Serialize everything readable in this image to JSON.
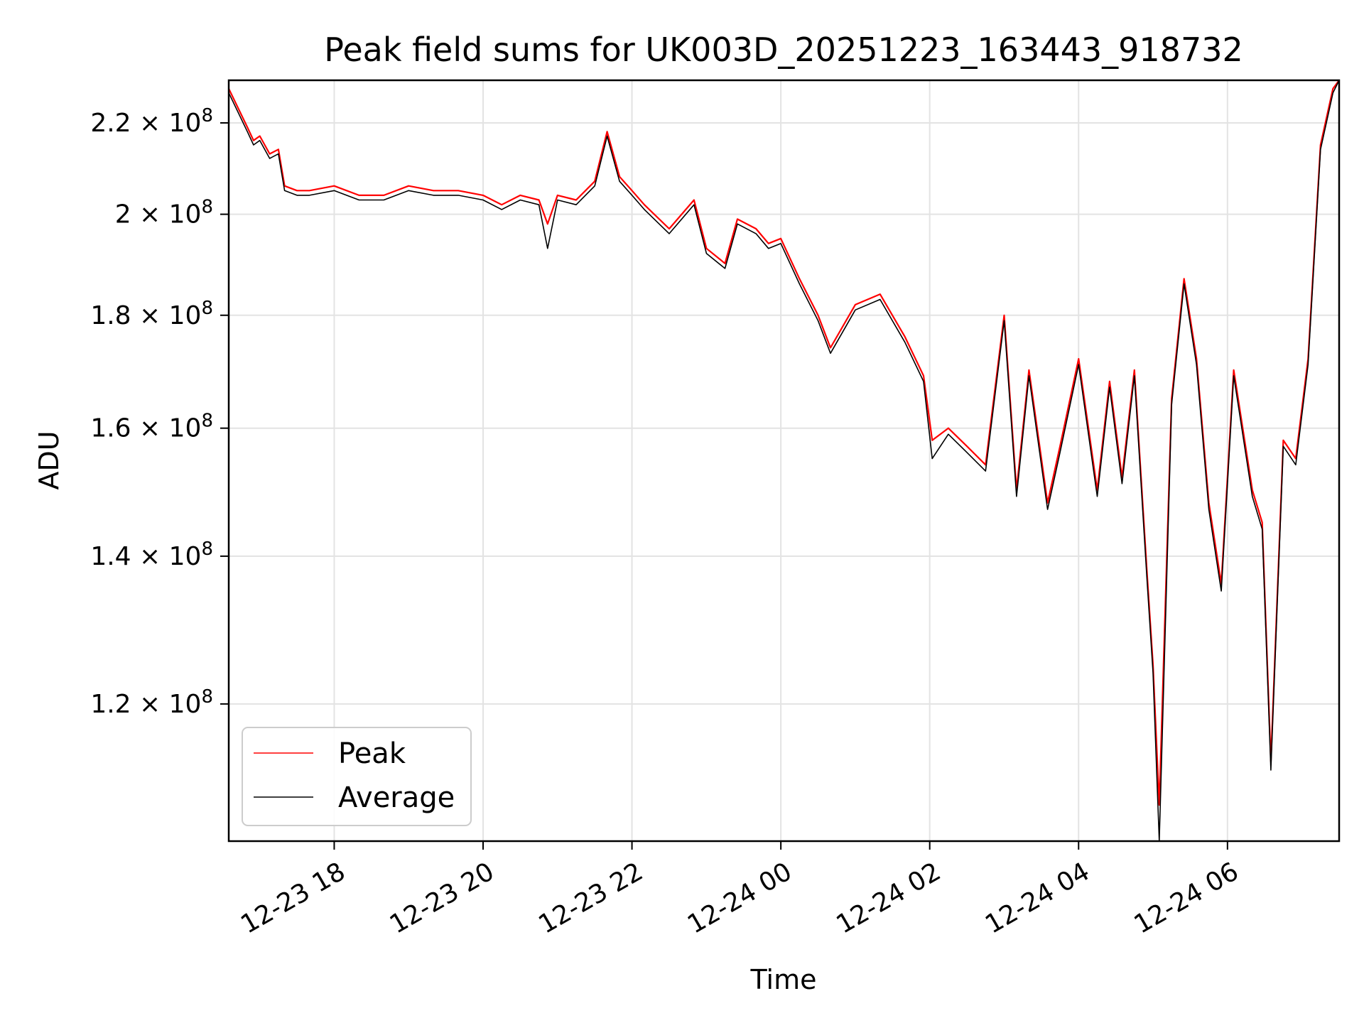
{
  "chart_data": {
    "type": "line",
    "title": "Peak field sums for UK003D_20251223_163443_918732",
    "xlabel": "Time",
    "ylabel": "ADU",
    "y_scale": "log",
    "ylim": [
      104000000,
      230000000
    ],
    "xlim": [
      "12-23 16:35",
      "12-24 07:30"
    ],
    "grid": true,
    "legend_position": "lower-left",
    "x_ticks": [
      "12-23 18",
      "12-23 20",
      "12-23 22",
      "12-24 00",
      "12-24 02",
      "12-24 04",
      "12-24 06"
    ],
    "y_ticks": [
      {
        "value": 120000000,
        "mantissa": "1.2",
        "exponent": "8"
      },
      {
        "value": 140000000,
        "mantissa": "1.4",
        "exponent": "8"
      },
      {
        "value": 160000000,
        "mantissa": "1.6",
        "exponent": "8"
      },
      {
        "value": 180000000,
        "mantissa": "1.8",
        "exponent": "8"
      },
      {
        "value": 200000000,
        "mantissa": "2",
        "exponent": "8"
      },
      {
        "value": 220000000,
        "mantissa": "2.2",
        "exponent": "8"
      }
    ],
    "series_colors": {
      "peak": "#ff0000",
      "average": "#000000"
    },
    "series": [
      {
        "name": "Peak",
        "color": "#ff0000",
        "x": [
          "12-23 16:35",
          "12-23 16:50",
          "12-23 16:55",
          "12-23 17:00",
          "12-23 17:08",
          "12-23 17:15",
          "12-23 17:20",
          "12-23 17:30",
          "12-23 17:40",
          "12-23 18:00",
          "12-23 18:20",
          "12-23 18:40",
          "12-23 19:00",
          "12-23 19:20",
          "12-23 19:40",
          "12-23 20:00",
          "12-23 20:15",
          "12-23 20:30",
          "12-23 20:45",
          "12-23 20:52",
          "12-23 21:00",
          "12-23 21:15",
          "12-23 21:30",
          "12-23 21:40",
          "12-23 21:50",
          "12-23 22:00",
          "12-23 22:10",
          "12-23 22:30",
          "12-23 22:50",
          "12-23 23:00",
          "12-23 23:15",
          "12-23 23:25",
          "12-23 23:40",
          "12-23 23:50",
          "12-24 00:00",
          "12-24 00:15",
          "12-24 00:30",
          "12-24 00:40",
          "12-24 01:00",
          "12-24 01:20",
          "12-24 01:40",
          "12-24 01:55",
          "12-24 02:02",
          "12-24 02:15",
          "12-24 02:30",
          "12-24 02:45",
          "12-24 03:00",
          "12-24 03:10",
          "12-24 03:20",
          "12-24 03:35",
          "12-24 03:45",
          "12-24 04:00",
          "12-24 04:15",
          "12-24 04:25",
          "12-24 04:35",
          "12-24 04:45",
          "12-24 04:55",
          "12-24 05:00",
          "12-24 05:05",
          "12-24 05:15",
          "12-24 05:25",
          "12-24 05:35",
          "12-24 05:45",
          "12-24 05:55",
          "12-24 06:05",
          "12-24 06:20",
          "12-24 06:28",
          "12-24 06:35",
          "12-24 06:45",
          "12-24 06:55",
          "12-24 07:05",
          "12-24 07:15",
          "12-24 07:25",
          "12-24 07:30"
        ],
        "values": [
          228000000,
          219000000,
          216000000,
          217000000,
          213000000,
          214000000,
          206000000,
          205000000,
          205000000,
          206000000,
          204000000,
          204000000,
          206000000,
          205000000,
          205000000,
          204000000,
          202000000,
          204000000,
          203000000,
          198000000,
          204000000,
          203000000,
          207000000,
          218000000,
          208000000,
          205000000,
          202000000,
          197000000,
          203000000,
          193000000,
          190000000,
          199000000,
          197000000,
          194000000,
          195000000,
          187000000,
          180000000,
          174000000,
          182000000,
          184000000,
          176000000,
          169000000,
          158000000,
          160000000,
          157000000,
          154000000,
          180000000,
          150000000,
          170000000,
          148000000,
          157000000,
          172000000,
          150000000,
          168000000,
          152000000,
          170000000,
          138000000,
          125000000,
          108000000,
          165000000,
          187000000,
          172000000,
          148000000,
          136000000,
          170000000,
          150000000,
          145000000,
          113000000,
          158000000,
          155000000,
          172000000,
          215000000,
          228000000,
          230000000
        ]
      },
      {
        "name": "Average",
        "color": "#000000",
        "x": [
          "12-23 16:35",
          "12-23 16:50",
          "12-23 16:55",
          "12-23 17:00",
          "12-23 17:08",
          "12-23 17:15",
          "12-23 17:20",
          "12-23 17:30",
          "12-23 17:40",
          "12-23 18:00",
          "12-23 18:20",
          "12-23 18:40",
          "12-23 19:00",
          "12-23 19:20",
          "12-23 19:40",
          "12-23 20:00",
          "12-23 20:15",
          "12-23 20:30",
          "12-23 20:45",
          "12-23 20:52",
          "12-23 21:00",
          "12-23 21:15",
          "12-23 21:30",
          "12-23 21:40",
          "12-23 21:50",
          "12-23 22:00",
          "12-23 22:10",
          "12-23 22:30",
          "12-23 22:50",
          "12-23 23:00",
          "12-23 23:15",
          "12-23 23:25",
          "12-23 23:40",
          "12-23 23:50",
          "12-24 00:00",
          "12-24 00:15",
          "12-24 00:30",
          "12-24 00:40",
          "12-24 01:00",
          "12-24 01:20",
          "12-24 01:40",
          "12-24 01:55",
          "12-24 02:02",
          "12-24 02:15",
          "12-24 02:30",
          "12-24 02:45",
          "12-24 03:00",
          "12-24 03:10",
          "12-24 03:20",
          "12-24 03:35",
          "12-24 03:45",
          "12-24 04:00",
          "12-24 04:15",
          "12-24 04:25",
          "12-24 04:35",
          "12-24 04:45",
          "12-24 04:55",
          "12-24 05:00",
          "12-24 05:05",
          "12-24 05:15",
          "12-24 05:25",
          "12-24 05:35",
          "12-24 05:45",
          "12-24 05:55",
          "12-24 06:05",
          "12-24 06:20",
          "12-24 06:28",
          "12-24 06:35",
          "12-24 06:45",
          "12-24 06:55",
          "12-24 07:05",
          "12-24 07:15",
          "12-24 07:25",
          "12-24 07:30"
        ],
        "values": [
          227000000,
          218000000,
          215000000,
          216000000,
          212000000,
          213000000,
          205000000,
          204000000,
          204000000,
          205000000,
          203000000,
          203000000,
          205000000,
          204000000,
          204000000,
          203000000,
          201000000,
          203000000,
          202000000,
          193000000,
          203000000,
          202000000,
          206000000,
          217000000,
          207000000,
          204000000,
          201000000,
          196000000,
          202000000,
          192000000,
          189000000,
          198000000,
          196000000,
          193000000,
          194000000,
          186000000,
          179000000,
          173000000,
          181000000,
          183000000,
          175000000,
          168000000,
          155000000,
          159000000,
          156000000,
          153000000,
          179000000,
          149000000,
          169000000,
          147000000,
          156000000,
          171000000,
          149000000,
          167000000,
          151000000,
          169000000,
          137000000,
          124000000,
          104000000,
          164000000,
          186000000,
          171000000,
          147000000,
          135000000,
          169000000,
          149000000,
          144000000,
          112000000,
          157000000,
          154000000,
          171000000,
          214000000,
          227000000,
          230000000
        ]
      }
    ]
  }
}
